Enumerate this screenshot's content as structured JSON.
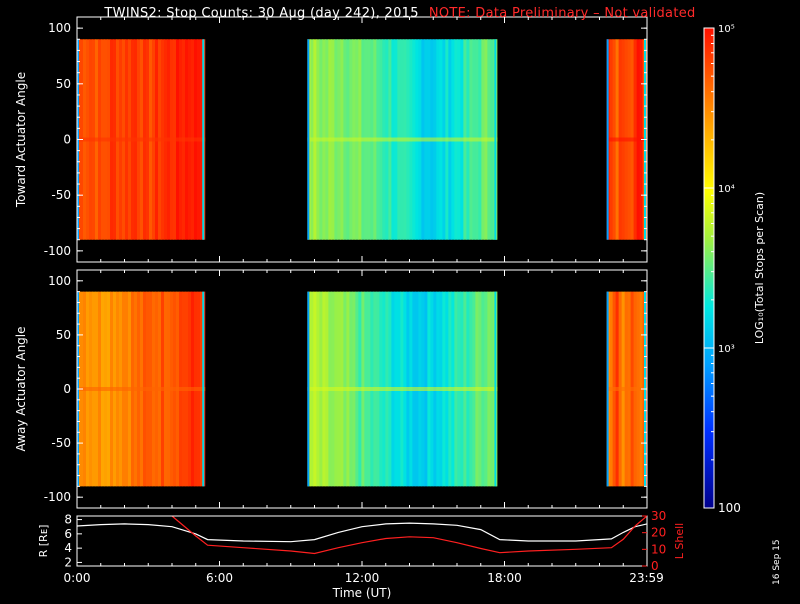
{
  "title": "TWINS2: Stop Counts: 30 Aug (day 242), 2015",
  "note": "NOTE: Data Preliminary – Not validated",
  "datestamp": "16 Sep 15",
  "colors": {
    "background": "#000000",
    "axes": "#ffffff",
    "note": "#ff2a2a",
    "r_line": "#ffffff",
    "lshell_line": "#ff2020"
  },
  "chart_data": [
    {
      "type": "heatmap",
      "name": "toward-panel",
      "ylabel": "Toward Actuator Angle",
      "xlim": [
        0,
        24
      ],
      "ylim": [
        -110,
        110
      ],
      "yticks": [
        -100,
        -50,
        0,
        50,
        100
      ],
      "data_y_range": [
        -90,
        90
      ],
      "segments": [
        {
          "start": 0.0,
          "end": 5.4,
          "log10_counts": [
            4.75,
            4.8,
            4.7,
            4.85,
            4.8,
            4.9,
            4.75,
            4.85,
            4.9,
            4.95,
            5.0,
            5.0
          ]
        },
        {
          "start": 9.7,
          "end": 17.7,
          "log10_counts": [
            3.7,
            3.6,
            3.65,
            3.55,
            3.5,
            3.4,
            3.3,
            3.2,
            3.15,
            3.25,
            3.35,
            3.5,
            3.6
          ]
        },
        {
          "start": 22.3,
          "end": 24.0,
          "log10_counts": [
            4.9,
            4.6,
            4.9,
            4.8,
            4.95,
            4.7
          ]
        }
      ]
    },
    {
      "type": "heatmap",
      "name": "away-panel",
      "ylabel": "Away Actuator Angle",
      "xlim": [
        0,
        24
      ],
      "ylim": [
        -110,
        110
      ],
      "yticks": [
        -100,
        -50,
        0,
        50,
        100
      ],
      "data_y_range": [
        -90,
        90
      ],
      "segments": [
        {
          "start": 0.0,
          "end": 5.4,
          "log10_counts": [
            4.55,
            4.5,
            4.45,
            4.5,
            4.55,
            4.6,
            4.65,
            4.7,
            4.75,
            4.8,
            4.85,
            4.9
          ]
        },
        {
          "start": 9.7,
          "end": 17.7,
          "log10_counts": [
            3.75,
            3.65,
            3.6,
            3.5,
            3.4,
            3.3,
            3.2,
            3.15,
            3.2,
            3.3,
            3.4,
            3.55,
            3.65
          ]
        },
        {
          "start": 22.3,
          "end": 24.0,
          "log10_counts": [
            4.5,
            4.9,
            4.4,
            4.8,
            4.6,
            4.85
          ]
        }
      ]
    },
    {
      "type": "line",
      "name": "orbit-panel",
      "xlabel": "Time (UT)",
      "xlim": [
        0,
        24
      ],
      "xticks": [
        0,
        6,
        12,
        18,
        23.98
      ],
      "xtick_labels": [
        "0:00",
        "6:00",
        "12:00",
        "18:00",
        "23:59"
      ],
      "left_axis": {
        "label": "R [Rᴇ]",
        "ylim": [
          1.5,
          8.5
        ],
        "yticks": [
          2,
          4,
          6,
          8
        ]
      },
      "right_axis": {
        "label": "L Shell",
        "ylim": [
          0,
          30
        ],
        "yticks": [
          0,
          10,
          20,
          30
        ]
      },
      "series": [
        {
          "axis": "left",
          "x": [
            0,
            1,
            2,
            3,
            4,
            5,
            5.5,
            7,
            9,
            10,
            11,
            12,
            13,
            14,
            15,
            16,
            17,
            17.8,
            19,
            21,
            22.5,
            23,
            23.5,
            24
          ],
          "values": [
            7.1,
            7.3,
            7.4,
            7.3,
            7.0,
            6.0,
            5.2,
            5.0,
            4.9,
            5.2,
            6.2,
            7.0,
            7.4,
            7.5,
            7.4,
            7.2,
            6.6,
            5.2,
            5.0,
            5.0,
            5.3,
            6.2,
            7.0,
            7.4
          ]
        },
        {
          "axis": "right",
          "x": [
            4.0,
            4.5,
            5.0,
            5.5,
            7,
            9,
            10,
            11,
            12,
            13,
            14,
            15,
            16,
            17,
            17.8,
            19,
            21,
            22.5,
            23,
            23.5,
            24
          ],
          "values": [
            30,
            24,
            18,
            12.5,
            11,
            9,
            7.5,
            11,
            14,
            16.5,
            17.5,
            17,
            14,
            10.5,
            8,
            9,
            10,
            11,
            16,
            24,
            30
          ]
        }
      ]
    },
    {
      "type": "colorbar",
      "name": "colorbar",
      "label": "LOG₁₀(Total Stops per Scan)",
      "log10_range": [
        2,
        5
      ],
      "tick_labels": [
        {
          "log10": 5,
          "text": "10⁵"
        },
        {
          "log10": 4,
          "text": "10⁴"
        },
        {
          "log10": 3,
          "text": "10³"
        },
        {
          "log10": 2,
          "text": "100"
        }
      ]
    }
  ]
}
